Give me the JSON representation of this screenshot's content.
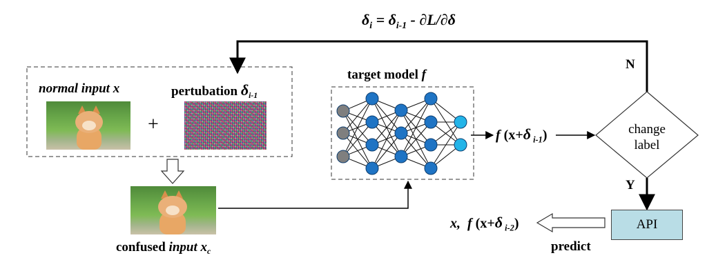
{
  "formula": {
    "lhs": "δ",
    "lhs_sub": "i",
    "eq": " = δ",
    "eq_sub": "i-1",
    "rest": " - ∂L/∂δ"
  },
  "input_block": {
    "normal_label_italic": "normal input x",
    "perturbation_label": "pertubation ",
    "perturbation_delta": "δ",
    "perturbation_sub": "i-1",
    "plus": "+"
  },
  "model": {
    "label": "target model ",
    "label_f": "f"
  },
  "model_output": {
    "f": "f",
    "open": " (x+",
    "delta": "δ",
    "sub": " i-1",
    "close": ")"
  },
  "decision": {
    "line1": "change",
    "line2": "label",
    "no": "N",
    "yes": "Y"
  },
  "api": {
    "label": "API",
    "predict": "predict"
  },
  "result": {
    "x": "x,",
    "f": "f",
    "open": " (x+",
    "delta": "δ",
    "sub": " i-2",
    "close": ")"
  },
  "confused": {
    "label_plain": "confused ",
    "label_italic": "input x",
    "label_sub": "c"
  },
  "colors": {
    "api_fill": "#b9dde6",
    "neuron_gray": "#7f7f7f",
    "neuron_blue": "#1f74c4",
    "neuron_cyan": "#23b4e8"
  },
  "icons": [
    "down-hollow-arrow-icon",
    "left-hollow-arrow-icon"
  ]
}
